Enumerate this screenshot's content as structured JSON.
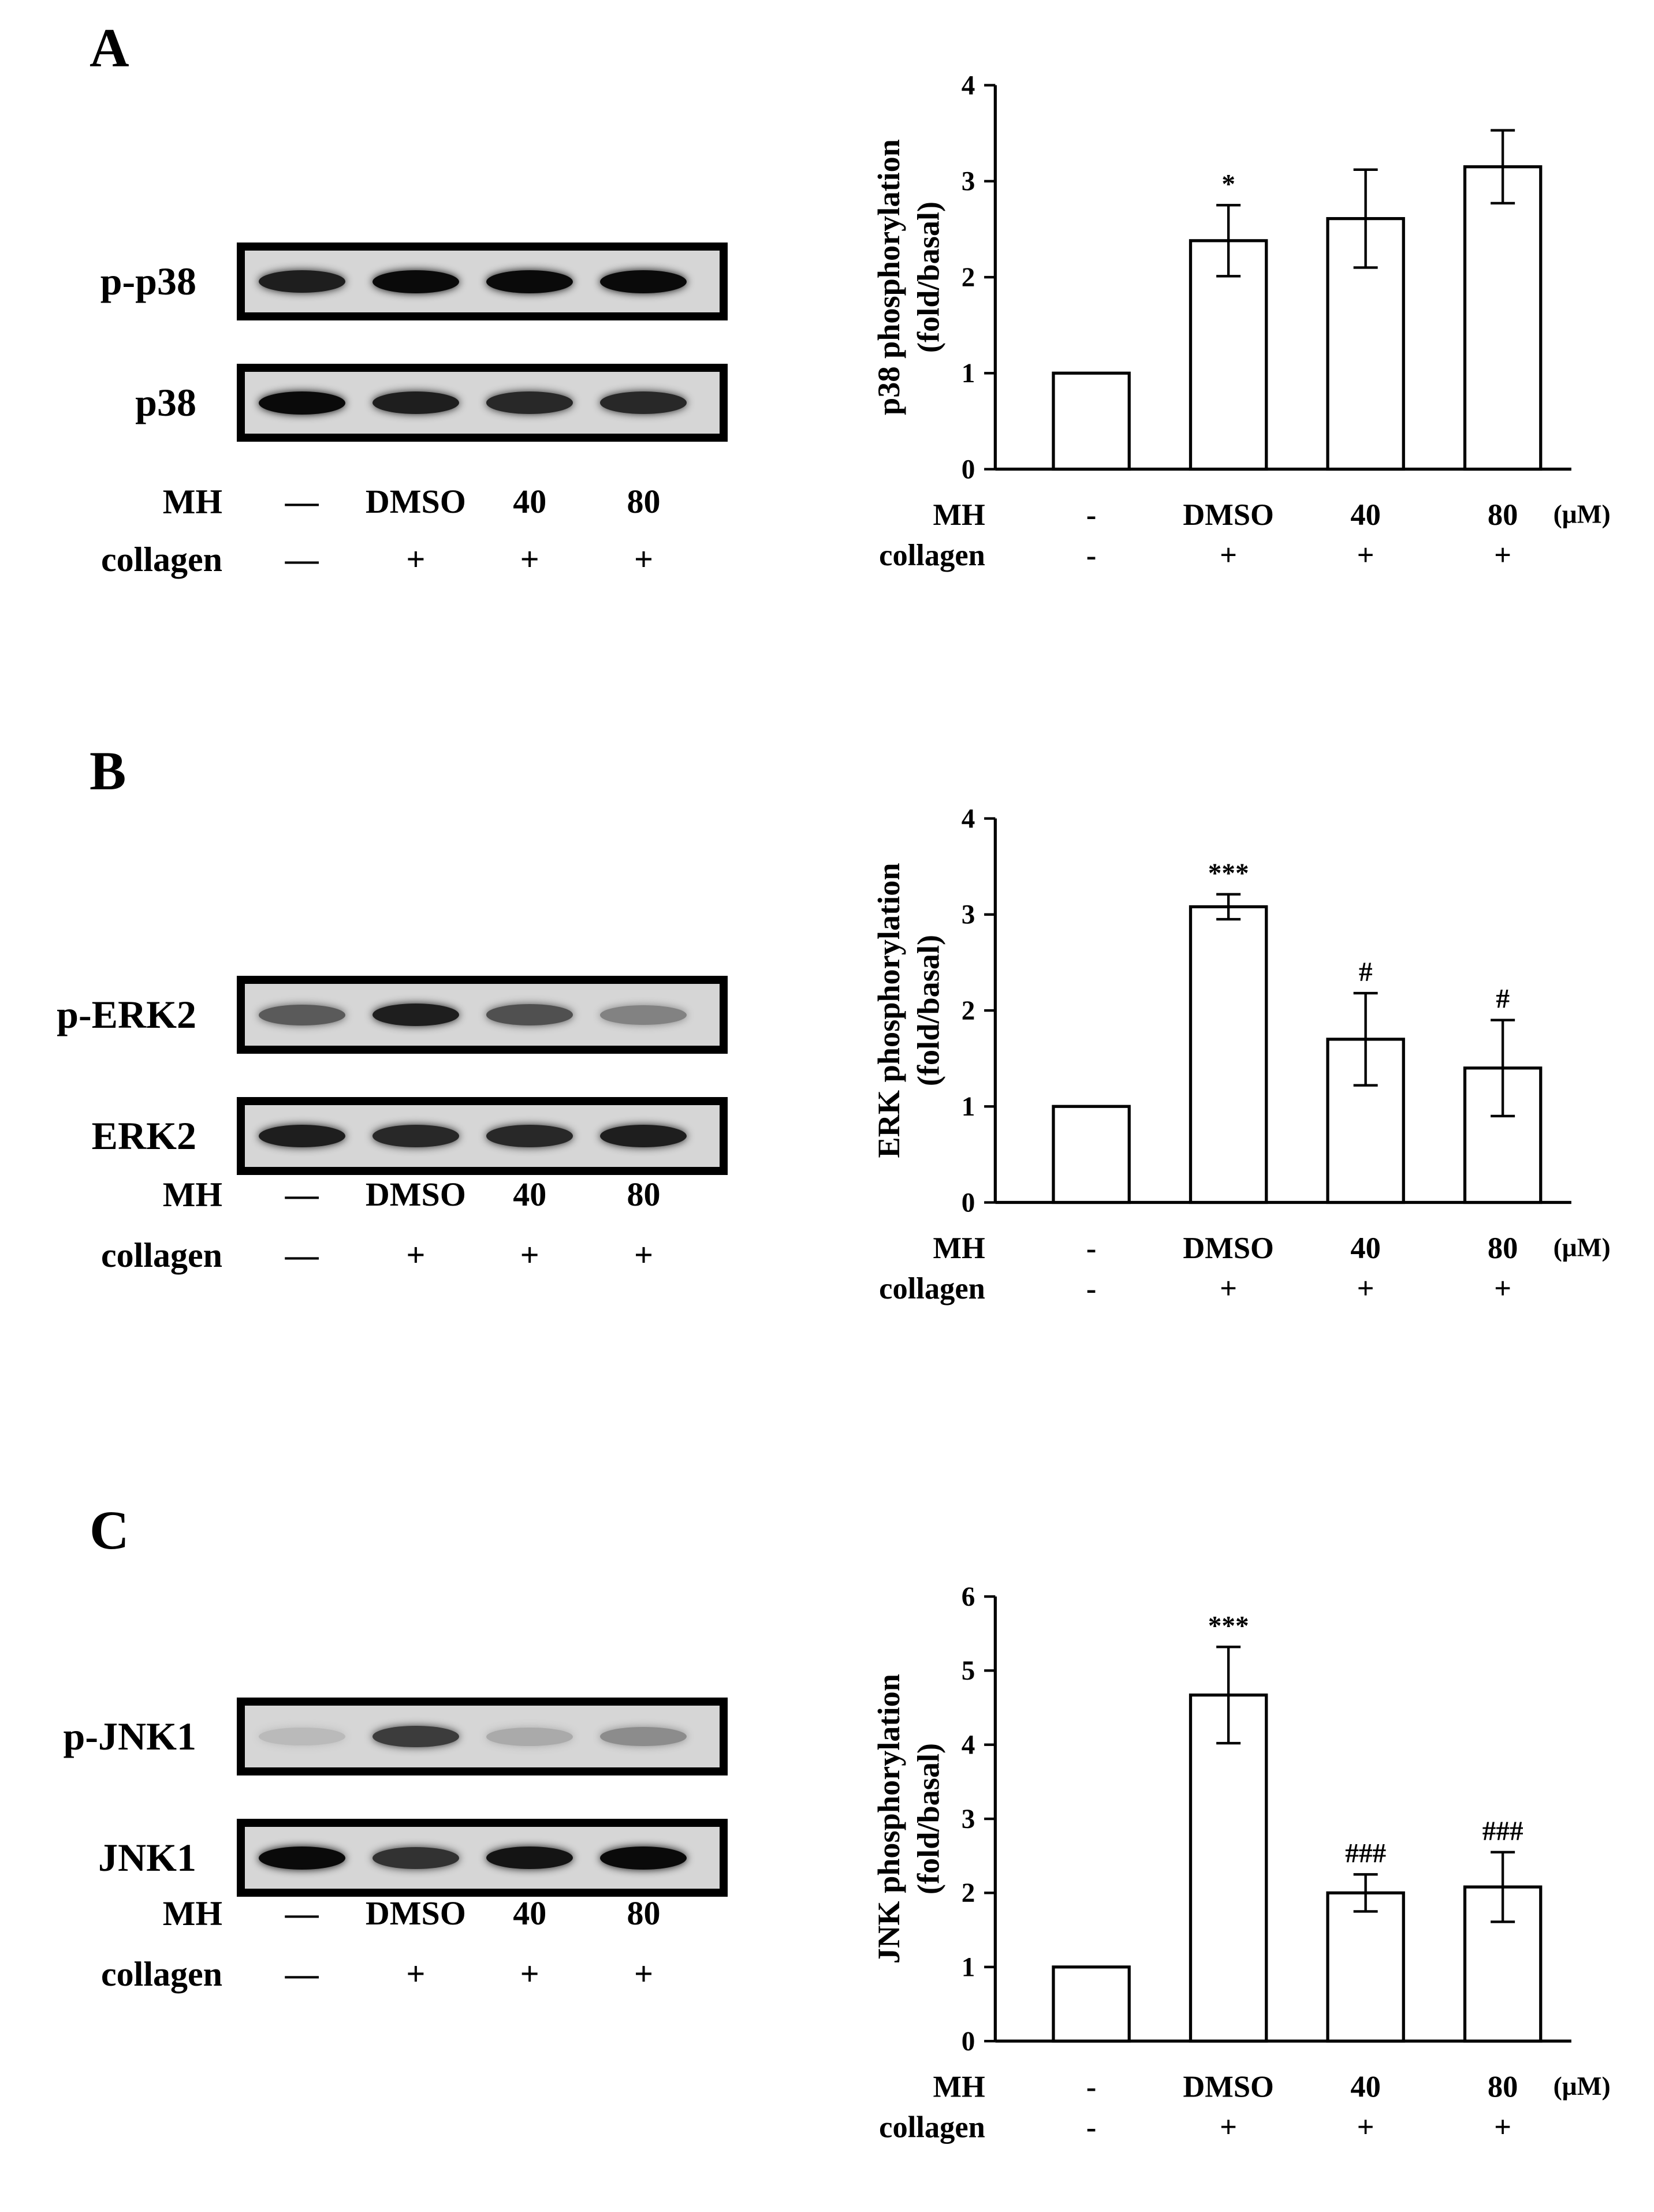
{
  "panels": [
    {
      "letter": "A",
      "blots": [
        {
          "label": "p-p38",
          "intensities": [
            0.9,
            1.0,
            1.0,
            1.0
          ]
        },
        {
          "label": "p38",
          "intensities": [
            1.0,
            0.9,
            0.85,
            0.85
          ]
        }
      ],
      "conditions": [
        {
          "label": "MH",
          "values": [
            "—",
            "DMSO",
            "40",
            "80"
          ]
        },
        {
          "label": "collagen",
          "values": [
            "—",
            "+",
            "+",
            "+"
          ]
        }
      ]
    },
    {
      "letter": "B",
      "blots": [
        {
          "label": "p-ERK2",
          "intensities": [
            0.6,
            0.9,
            0.65,
            0.4
          ]
        },
        {
          "label": "ERK2",
          "intensities": [
            0.9,
            0.85,
            0.85,
            0.9
          ]
        }
      ],
      "conditions": [
        {
          "label": "MH",
          "values": [
            "—",
            "DMSO",
            "40",
            "80"
          ]
        },
        {
          "label": "collagen",
          "values": [
            "—",
            "+",
            "+",
            "+"
          ]
        }
      ]
    },
    {
      "letter": "C",
      "blots": [
        {
          "label": "p-JNK1",
          "intensities": [
            0.12,
            0.75,
            0.2,
            0.35
          ]
        },
        {
          "label": "JNK1",
          "intensities": [
            1.0,
            0.8,
            0.95,
            1.0
          ]
        }
      ],
      "conditions": [
        {
          "label": "MH",
          "values": [
            "—",
            "DMSO",
            "40",
            "80"
          ]
        },
        {
          "label": "collagen",
          "values": [
            "—",
            "+",
            "+",
            "+"
          ]
        }
      ]
    }
  ],
  "chart_data": [
    {
      "type": "bar",
      "ylabel": "p38 phosphorylation (fold/basal)",
      "ylim": [
        0,
        4
      ],
      "yticks": [
        "0",
        "1",
        "2",
        "3",
        "4"
      ],
      "categories": [
        "-",
        "DMSO",
        "40",
        "80"
      ],
      "values": [
        1.0,
        2.38,
        2.61,
        3.15
      ],
      "errors": [
        0,
        0.37,
        0.51,
        0.38
      ],
      "annotations": [
        "",
        "*",
        "",
        ""
      ],
      "xrows": [
        {
          "label": "MH",
          "values": [
            "-",
            "DMSO",
            "40",
            "80"
          ],
          "unit": "(μM)"
        },
        {
          "label": "collagen",
          "values": [
            "-",
            "+",
            "+",
            "+"
          ]
        }
      ]
    },
    {
      "type": "bar",
      "ylabel": "ERK phosphorylation (fold/basal)",
      "ylim": [
        0,
        4
      ],
      "yticks": [
        "0",
        "1",
        "2",
        "3",
        "4"
      ],
      "categories": [
        "-",
        "DMSO",
        "40",
        "80"
      ],
      "values": [
        1.0,
        3.08,
        1.7,
        1.4
      ],
      "errors": [
        0,
        0.13,
        0.48,
        0.5
      ],
      "annotations": [
        "",
        "***",
        "#",
        "#"
      ],
      "xrows": [
        {
          "label": "MH",
          "values": [
            "-",
            "DMSO",
            "40",
            "80"
          ],
          "unit": "(μM)"
        },
        {
          "label": "collagen",
          "values": [
            "-",
            "+",
            "+",
            "+"
          ]
        }
      ]
    },
    {
      "type": "bar",
      "ylabel": "JNK phosphorylation (fold/basal)",
      "ylim": [
        0,
        6
      ],
      "yticks": [
        "0",
        "1",
        "2",
        "3",
        "4",
        "5",
        "6"
      ],
      "categories": [
        "-",
        "DMSO",
        "40",
        "80"
      ],
      "values": [
        1.0,
        4.67,
        2.0,
        2.08
      ],
      "errors": [
        0,
        0.65,
        0.25,
        0.47
      ],
      "annotations": [
        "",
        "***",
        "###",
        "###"
      ],
      "xrows": [
        {
          "label": "MH",
          "values": [
            "-",
            "DMSO",
            "40",
            "80"
          ],
          "unit": "(μM)"
        },
        {
          "label": "collagen",
          "values": [
            "-",
            "+",
            "+",
            "+"
          ]
        }
      ]
    }
  ]
}
